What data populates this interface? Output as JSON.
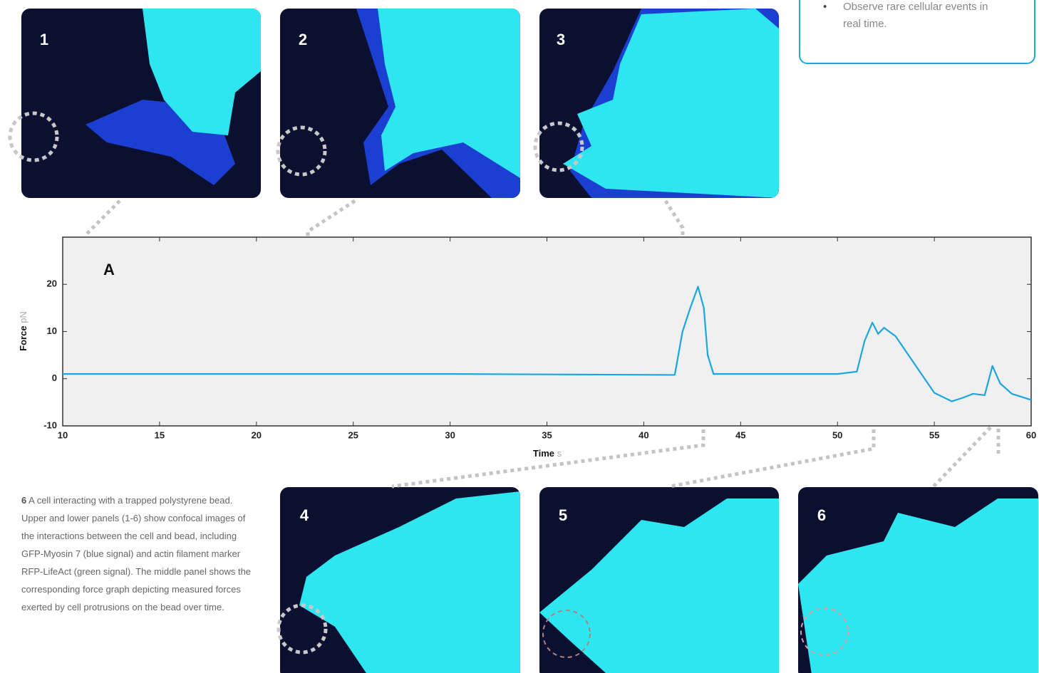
{
  "chart_data": {
    "type": "line",
    "annotation": "A",
    "x_label": "Time",
    "x_unit": "s",
    "y_label": "Force",
    "y_unit": "pN",
    "x": [
      10,
      20,
      30,
      41.6,
      42,
      42.4,
      42.8,
      43.1,
      43.3,
      43.6,
      45,
      50,
      51,
      51.4,
      51.8,
      52.1,
      52.4,
      53,
      54,
      55,
      55.9,
      56.5,
      57,
      57.6,
      58,
      58.4,
      59,
      60
    ],
    "values": [
      1,
      1,
      1,
      0.8,
      10,
      15,
      19.5,
      15,
      5,
      1,
      1,
      1,
      1.5,
      8,
      11.9,
      9.5,
      10.8,
      9,
      3,
      -3,
      -4.8,
      -4,
      -3.2,
      -3.5,
      2.7,
      -1,
      -3.2,
      -4.5
    ],
    "color": "#1aa7df",
    "xlim": [
      10,
      60
    ],
    "xticks": [
      10,
      15,
      20,
      25,
      30,
      35,
      40,
      45,
      50,
      55,
      60
    ],
    "ylim": [
      -10,
      30
    ],
    "yticks": [
      -10,
      0,
      10,
      20
    ]
  },
  "panels": [
    "1",
    "2",
    "3",
    "4",
    "5",
    "6"
  ],
  "callout": "Observe rare cellular events in real time.",
  "caption": {
    "number": "6",
    "text": "A cell interacting with a trapped polystyrene bead. Upper and lower panels (1-6) show confocal images of the interactions between the cell and bead, including GFP-Myosin 7 (blue signal) and actin filament marker RFP-LifeAct (green signal). The middle panel shows the corresponding force graph depicting measured forces exerted by cell protrusions on the bead over time."
  }
}
